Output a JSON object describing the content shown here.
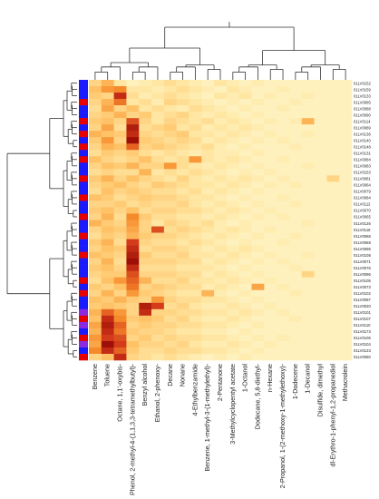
{
  "chart_data": {
    "type": "heatmap",
    "columns": [
      "Benzene",
      "Toluene",
      "Octane, 1,1'-oxybis-",
      "Phenol, 2-methyl-4-(1,1,3,3-tetramethylbutyl)-",
      "Benzyl alcohol",
      "Ethanol, 2-phenoxy-",
      "Decane",
      "Nonane",
      "4-Ethylbenzamide",
      "Benzene, 1-methyl-3-(1-methylethyl)-",
      "2-Pentanone",
      "3-Methylcyclopentyl acetate",
      "1-Octanol",
      "Dodecane, 5,8-diethyl-",
      "n-Hexane",
      "2-Propanol, 1-(2-methoxy-1-methylethoxy)-",
      "1-Dodecene",
      "1-Decanol",
      "Disulfide, dimethyl",
      "dl-Erythro-1-phenyl-1,2-propanediol",
      "Methacrolein"
    ],
    "rows": [
      "01LV0152",
      "01LV0159",
      "01LV0133",
      "01LV0085",
      "01LV0088",
      "01LV0090",
      "01LV0114",
      "01LV0089",
      "01LV0136",
      "01LV0140",
      "01LV0148",
      "01LV0131",
      "01LV0084",
      "01LV0083",
      "01LV0153",
      "01LV0081",
      "01LV0064",
      "01LV0079",
      "01LV0084",
      "01LV0112",
      "01LV0070",
      "01LV0065",
      "01LV0126",
      "01LV0118",
      "01LV0068",
      "01LV0069",
      "01LV0095",
      "01LV0108",
      "01LV0071",
      "01LV0076",
      "01LV0096",
      "01LV0105",
      "01LV0073",
      "01LV0102",
      "01LV0097",
      "01LV0020",
      "01LV0101",
      "01LV0107",
      "01LV0110",
      "01LV0173",
      "01LV0106",
      "01LV0104",
      "01LV0123",
      "01LV0060"
    ],
    "row_groups": [
      "blue",
      "blue",
      "blue",
      "red",
      "blue",
      "blue",
      "red",
      "blue",
      "red",
      "blue",
      "red",
      "blue",
      "red",
      "blue",
      "blue",
      "red",
      "blue",
      "blue",
      "red",
      "blue",
      "blue",
      "red",
      "blue",
      "blue",
      "red",
      "blue",
      "blue",
      "red",
      "blue",
      "blue",
      "blue",
      "red",
      "blue",
      "red",
      "blue",
      "blue",
      "purple",
      "red",
      "purple",
      "blue",
      "red",
      "purple",
      "blue",
      "red"
    ],
    "group_colors": {
      "blue": "#1a1aff",
      "red": "#e60000",
      "purple": "#8a2be2"
    },
    "color_scale": [
      "#fffbd6",
      "#ffe7a3",
      "#ffc266",
      "#f58a2a",
      "#d43b1a",
      "#8b0000"
    ],
    "values": [
      [
        0.3,
        0.45,
        0.2,
        0.1,
        0.15,
        0.2,
        0.25,
        0.2,
        0.15,
        0.1,
        0.2,
        0.15,
        0.1,
        0.15,
        0.1,
        0.1,
        0.1,
        0.1,
        0.1,
        0.1,
        0.1
      ],
      [
        0.4,
        0.55,
        0.6,
        0.2,
        0.2,
        0.15,
        0.2,
        0.25,
        0.2,
        0.15,
        0.1,
        0.2,
        0.15,
        0.1,
        0.1,
        0.15,
        0.1,
        0.1,
        0.1,
        0.1,
        0.1
      ],
      [
        0.35,
        0.3,
        0.85,
        0.25,
        0.15,
        0.2,
        0.25,
        0.2,
        0.15,
        0.1,
        0.2,
        0.15,
        0.2,
        0.1,
        0.15,
        0.1,
        0.1,
        0.15,
        0.1,
        0.1,
        0.1
      ],
      [
        0.3,
        0.45,
        0.65,
        0.2,
        0.25,
        0.15,
        0.3,
        0.25,
        0.2,
        0.15,
        0.1,
        0.15,
        0.1,
        0.15,
        0.1,
        0.1,
        0.15,
        0.1,
        0.1,
        0.1,
        0.1
      ],
      [
        0.25,
        0.5,
        0.3,
        0.4,
        0.2,
        0.25,
        0.2,
        0.15,
        0.25,
        0.2,
        0.15,
        0.1,
        0.15,
        0.1,
        0.1,
        0.15,
        0.1,
        0.1,
        0.1,
        0.1,
        0.1
      ],
      [
        0.3,
        0.35,
        0.45,
        0.3,
        0.35,
        0.2,
        0.25,
        0.3,
        0.2,
        0.15,
        0.2,
        0.15,
        0.1,
        0.15,
        0.1,
        0.1,
        0.1,
        0.1,
        0.1,
        0.1,
        0.1
      ],
      [
        0.35,
        0.4,
        0.3,
        0.75,
        0.3,
        0.2,
        0.3,
        0.25,
        0.2,
        0.25,
        0.15,
        0.2,
        0.15,
        0.1,
        0.15,
        0.1,
        0.15,
        0.45,
        0.1,
        0.1,
        0.1
      ],
      [
        0.3,
        0.5,
        0.25,
        0.9,
        0.25,
        0.3,
        0.35,
        0.2,
        0.25,
        0.15,
        0.2,
        0.15,
        0.2,
        0.15,
        0.1,
        0.1,
        0.1,
        0.1,
        0.1,
        0.1,
        0.1
      ],
      [
        0.45,
        0.4,
        0.35,
        0.85,
        0.3,
        0.25,
        0.3,
        0.35,
        0.2,
        0.2,
        0.15,
        0.2,
        0.15,
        0.1,
        0.15,
        0.1,
        0.1,
        0.15,
        0.1,
        0.1,
        0.1
      ],
      [
        0.35,
        0.55,
        0.3,
        0.95,
        0.35,
        0.3,
        0.25,
        0.3,
        0.25,
        0.15,
        0.2,
        0.15,
        0.1,
        0.15,
        0.1,
        0.15,
        0.1,
        0.1,
        0.1,
        0.1,
        0.1
      ],
      [
        0.3,
        0.45,
        0.4,
        0.7,
        0.3,
        0.35,
        0.3,
        0.25,
        0.2,
        0.25,
        0.15,
        0.1,
        0.15,
        0.1,
        0.1,
        0.1,
        0.15,
        0.1,
        0.1,
        0.1,
        0.1
      ],
      [
        0.25,
        0.35,
        0.3,
        0.35,
        0.25,
        0.2,
        0.25,
        0.2,
        0.15,
        0.2,
        0.15,
        0.15,
        0.1,
        0.15,
        0.1,
        0.1,
        0.1,
        0.1,
        0.1,
        0.1,
        0.1
      ],
      [
        0.4,
        0.3,
        0.25,
        0.3,
        0.4,
        0.25,
        0.2,
        0.25,
        0.55,
        0.2,
        0.15,
        0.2,
        0.15,
        0.1,
        0.1,
        0.15,
        0.1,
        0.1,
        0.1,
        0.1,
        0.1
      ],
      [
        0.3,
        0.4,
        0.35,
        0.45,
        0.3,
        0.3,
        0.55,
        0.25,
        0.2,
        0.15,
        0.2,
        0.15,
        0.1,
        0.15,
        0.1,
        0.1,
        0.1,
        0.15,
        0.1,
        0.1,
        0.1
      ],
      [
        0.25,
        0.3,
        0.25,
        0.25,
        0.45,
        0.2,
        0.25,
        0.2,
        0.25,
        0.2,
        0.15,
        0.1,
        0.15,
        0.1,
        0.15,
        0.1,
        0.1,
        0.1,
        0.1,
        0.1,
        0.1
      ],
      [
        0.35,
        0.45,
        0.3,
        0.4,
        0.3,
        0.25,
        0.2,
        0.3,
        0.2,
        0.15,
        0.2,
        0.15,
        0.2,
        0.15,
        0.1,
        0.15,
        0.1,
        0.1,
        0.1,
        0.3,
        0.1
      ],
      [
        0.3,
        0.35,
        0.4,
        0.3,
        0.25,
        0.35,
        0.3,
        0.25,
        0.2,
        0.2,
        0.15,
        0.2,
        0.15,
        0.1,
        0.15,
        0.1,
        0.15,
        0.1,
        0.1,
        0.1,
        0.1
      ],
      [
        0.25,
        0.4,
        0.3,
        0.35,
        0.3,
        0.25,
        0.25,
        0.2,
        0.25,
        0.15,
        0.2,
        0.15,
        0.1,
        0.15,
        0.1,
        0.1,
        0.1,
        0.1,
        0.1,
        0.1,
        0.1
      ],
      [
        0.4,
        0.35,
        0.25,
        0.3,
        0.35,
        0.3,
        0.3,
        0.25,
        0.2,
        0.2,
        0.15,
        0.1,
        0.15,
        0.1,
        0.1,
        0.15,
        0.1,
        0.1,
        0.1,
        0.1,
        0.1
      ],
      [
        0.3,
        0.3,
        0.35,
        0.25,
        0.3,
        0.25,
        0.25,
        0.3,
        0.2,
        0.15,
        0.2,
        0.15,
        0.1,
        0.15,
        0.1,
        0.1,
        0.15,
        0.1,
        0.1,
        0.1,
        0.1
      ],
      [
        0.35,
        0.4,
        0.3,
        0.4,
        0.25,
        0.3,
        0.3,
        0.25,
        0.25,
        0.2,
        0.15,
        0.2,
        0.15,
        0.1,
        0.15,
        0.1,
        0.1,
        0.1,
        0.1,
        0.1,
        0.1
      ],
      [
        0.3,
        0.45,
        0.25,
        0.6,
        0.35,
        0.25,
        0.25,
        0.2,
        0.2,
        0.15,
        0.2,
        0.15,
        0.1,
        0.15,
        0.1,
        0.15,
        0.1,
        0.1,
        0.1,
        0.1,
        0.1
      ],
      [
        0.45,
        0.35,
        0.3,
        0.55,
        0.3,
        0.2,
        0.3,
        0.25,
        0.2,
        0.25,
        0.15,
        0.1,
        0.15,
        0.1,
        0.1,
        0.1,
        0.1,
        0.15,
        0.1,
        0.1,
        0.1
      ],
      [
        0.3,
        0.4,
        0.35,
        0.5,
        0.3,
        0.75,
        0.25,
        0.3,
        0.25,
        0.2,
        0.15,
        0.2,
        0.15,
        0.1,
        0.15,
        0.1,
        0.1,
        0.1,
        0.1,
        0.1,
        0.1
      ],
      [
        0.25,
        0.35,
        0.3,
        0.45,
        0.35,
        0.3,
        0.3,
        0.25,
        0.2,
        0.15,
        0.2,
        0.15,
        0.1,
        0.15,
        0.1,
        0.1,
        0.15,
        0.1,
        0.1,
        0.1,
        0.1
      ],
      [
        0.35,
        0.45,
        0.25,
        0.8,
        0.3,
        0.25,
        0.25,
        0.2,
        0.25,
        0.2,
        0.15,
        0.1,
        0.15,
        0.1,
        0.1,
        0.15,
        0.1,
        0.1,
        0.1,
        0.1,
        0.1
      ],
      [
        0.3,
        0.4,
        0.35,
        0.85,
        0.25,
        0.3,
        0.3,
        0.25,
        0.2,
        0.15,
        0.2,
        0.15,
        0.2,
        0.15,
        0.1,
        0.1,
        0.1,
        0.1,
        0.1,
        0.1,
        0.1
      ],
      [
        0.4,
        0.35,
        0.3,
        0.9,
        0.35,
        0.25,
        0.25,
        0.3,
        0.2,
        0.2,
        0.15,
        0.2,
        0.15,
        0.1,
        0.15,
        0.1,
        0.1,
        0.15,
        0.1,
        0.1,
        0.1
      ],
      [
        0.3,
        0.45,
        0.25,
        0.95,
        0.3,
        0.3,
        0.3,
        0.25,
        0.25,
        0.15,
        0.2,
        0.15,
        0.1,
        0.15,
        0.1,
        0.15,
        0.1,
        0.1,
        0.1,
        0.1,
        0.1
      ],
      [
        0.35,
        0.4,
        0.3,
        0.85,
        0.25,
        0.25,
        0.25,
        0.2,
        0.2,
        0.2,
        0.15,
        0.1,
        0.15,
        0.1,
        0.1,
        0.1,
        0.15,
        0.1,
        0.1,
        0.1,
        0.1
      ],
      [
        0.3,
        0.35,
        0.35,
        0.75,
        0.3,
        0.3,
        0.3,
        0.25,
        0.25,
        0.15,
        0.2,
        0.15,
        0.1,
        0.15,
        0.1,
        0.1,
        0.1,
        0.3,
        0.1,
        0.1,
        0.1
      ],
      [
        0.25,
        0.4,
        0.55,
        0.7,
        0.45,
        0.25,
        0.25,
        0.3,
        0.2,
        0.2,
        0.15,
        0.2,
        0.15,
        0.1,
        0.15,
        0.1,
        0.1,
        0.1,
        0.1,
        0.1,
        0.1
      ],
      [
        0.35,
        0.3,
        0.4,
        0.65,
        0.3,
        0.35,
        0.3,
        0.25,
        0.25,
        0.15,
        0.2,
        0.15,
        0.1,
        0.5,
        0.1,
        0.15,
        0.1,
        0.1,
        0.1,
        0.1,
        0.1
      ],
      [
        0.3,
        0.45,
        0.3,
        0.55,
        0.35,
        0.3,
        0.25,
        0.2,
        0.2,
        0.45,
        0.15,
        0.1,
        0.15,
        0.1,
        0.1,
        0.1,
        0.15,
        0.1,
        0.1,
        0.1,
        0.1
      ],
      [
        0.4,
        0.35,
        0.45,
        0.35,
        0.3,
        0.55,
        0.3,
        0.25,
        0.25,
        0.2,
        0.2,
        0.15,
        0.1,
        0.15,
        0.1,
        0.1,
        0.1,
        0.1,
        0.1,
        0.1,
        0.1
      ],
      [
        0.35,
        0.4,
        0.35,
        0.3,
        0.9,
        0.8,
        0.25,
        0.3,
        0.2,
        0.15,
        0.15,
        0.2,
        0.15,
        0.1,
        0.15,
        0.1,
        0.1,
        0.1,
        0.1,
        0.1,
        0.1
      ],
      [
        0.45,
        0.7,
        0.55,
        0.3,
        0.85,
        0.3,
        0.3,
        0.25,
        0.25,
        0.2,
        0.2,
        0.15,
        0.2,
        0.15,
        0.1,
        0.15,
        0.1,
        0.1,
        0.1,
        0.1,
        0.1
      ],
      [
        0.4,
        0.85,
        0.6,
        0.35,
        0.4,
        0.35,
        0.25,
        0.3,
        0.2,
        0.15,
        0.15,
        0.2,
        0.15,
        0.1,
        0.1,
        0.1,
        0.15,
        0.1,
        0.1,
        0.1,
        0.1
      ],
      [
        0.5,
        0.9,
        0.7,
        0.3,
        0.35,
        0.3,
        0.3,
        0.25,
        0.25,
        0.2,
        0.2,
        0.15,
        0.1,
        0.15,
        0.1,
        0.1,
        0.1,
        0.1,
        0.1,
        0.1,
        0.1
      ],
      [
        0.45,
        0.85,
        0.65,
        0.35,
        0.3,
        0.3,
        0.25,
        0.2,
        0.2,
        0.15,
        0.15,
        0.1,
        0.15,
        0.1,
        0.1,
        0.1,
        0.1,
        0.1,
        0.1,
        0.1,
        0.1
      ],
      [
        0.55,
        0.8,
        0.75,
        0.3,
        0.35,
        0.25,
        0.3,
        0.25,
        0.25,
        0.2,
        0.2,
        0.15,
        0.1,
        0.15,
        0.1,
        0.15,
        0.1,
        0.1,
        0.1,
        0.1,
        0.1
      ],
      [
        0.5,
        0.95,
        0.8,
        0.4,
        0.3,
        0.3,
        0.25,
        0.3,
        0.2,
        0.15,
        0.15,
        0.2,
        0.15,
        0.1,
        0.15,
        0.1,
        0.1,
        0.1,
        0.1,
        0.1,
        0.1
      ],
      [
        0.6,
        0.85,
        0.7,
        0.35,
        0.25,
        0.25,
        0.3,
        0.25,
        0.25,
        0.2,
        0.2,
        0.15,
        0.1,
        0.15,
        0.1,
        0.1,
        0.1,
        0.1,
        0.1,
        0.1,
        0.1
      ],
      [
        0.3,
        0.4,
        0.85,
        0.3,
        0.25,
        0.2,
        0.25,
        0.2,
        0.15,
        0.1,
        0.15,
        0.1,
        0.15,
        0.1,
        0.1,
        0.1,
        0.1,
        0.1,
        0.1,
        0.1,
        0.1
      ]
    ]
  }
}
